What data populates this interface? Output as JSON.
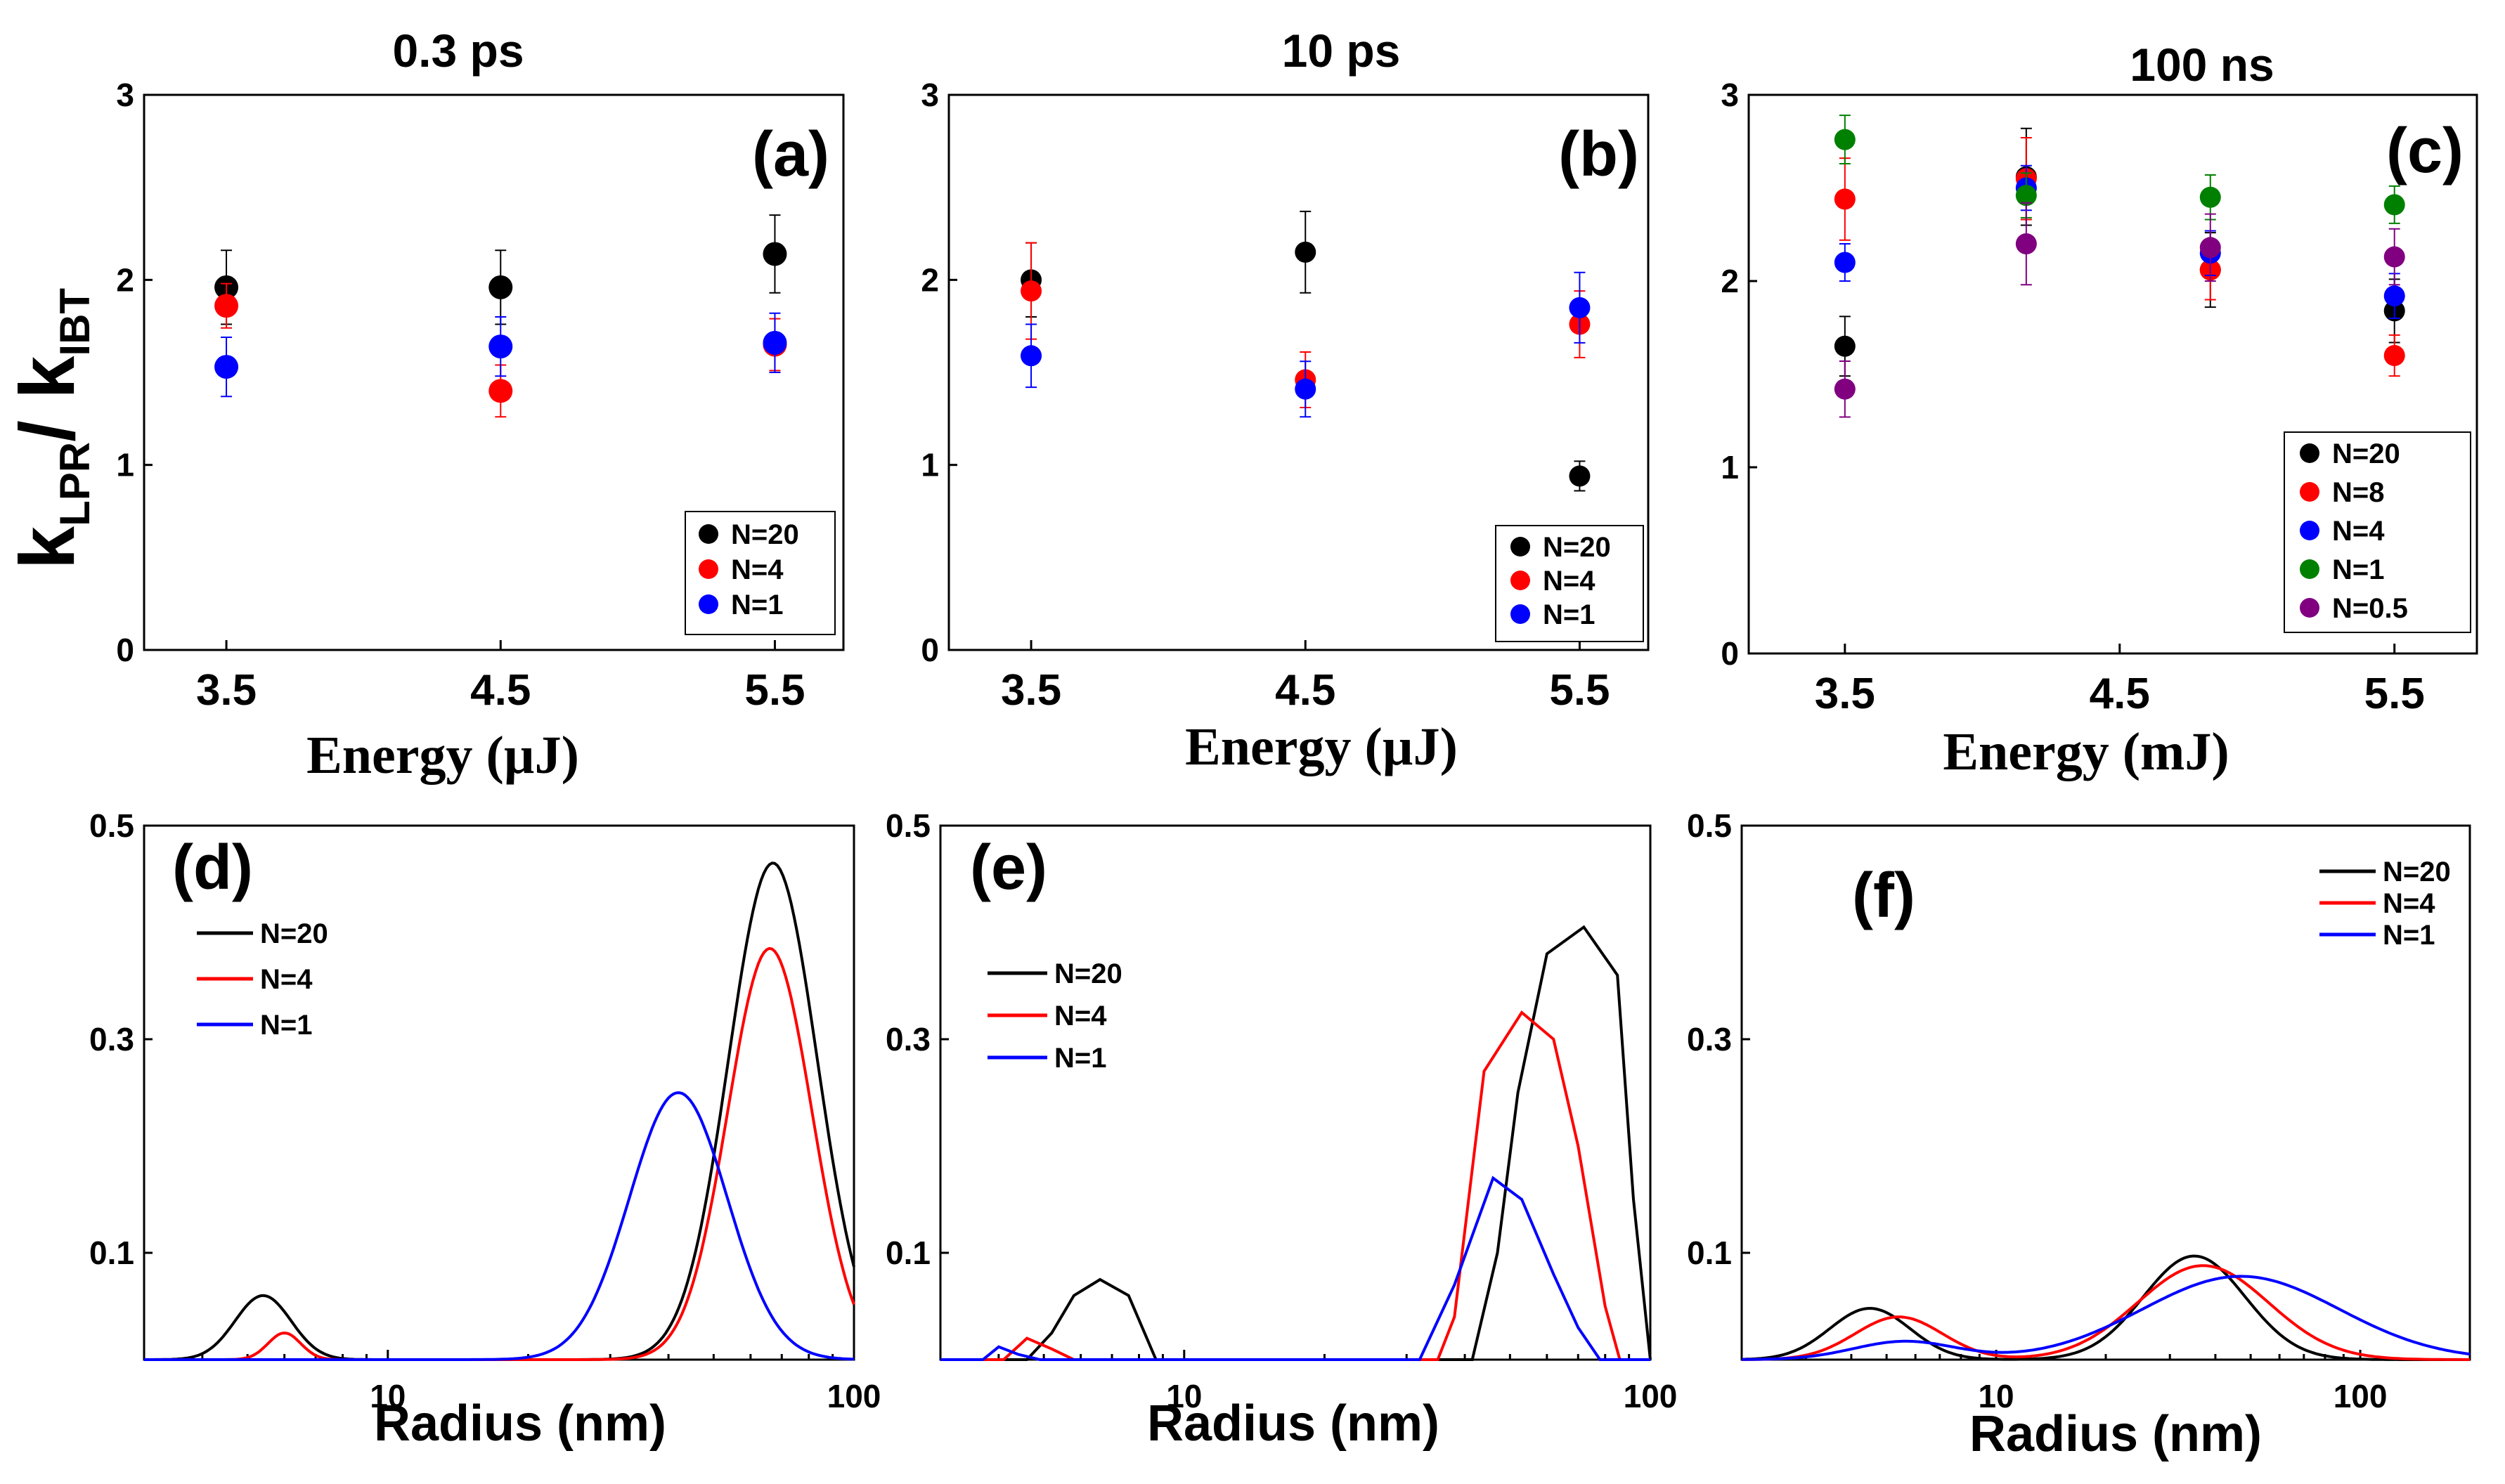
{
  "figure": {
    "ylabel_main": "k",
    "ylabel_sub1": "LPR",
    "ylabel_sep": "/ k",
    "ylabel_sub2": "IBT"
  },
  "chart_data": [
    {
      "id": "a",
      "type": "scatter",
      "title": "0.3 ps",
      "panel_label": "(a)",
      "xlabel": "Energy (µJ)",
      "xlabel_font": "serif",
      "ylabel": "kLPR/ kIBT",
      "xlim": [
        3.2,
        5.75
      ],
      "ylim": [
        0,
        3
      ],
      "xticks": [
        3.5,
        4.5,
        5.5
      ],
      "xtick_labels": [
        "3.5",
        "4.5",
        "5.5"
      ],
      "yticks": [
        0,
        1,
        2,
        3
      ],
      "ytick_labels": [
        "0",
        "1",
        "2",
        "3"
      ],
      "legend_position": "bottom-right",
      "series": [
        {
          "name": "N=20",
          "color": "#000000",
          "x": [
            3.5,
            4.5,
            5.5
          ],
          "y": [
            1.96,
            1.96,
            2.14
          ],
          "err": [
            0.2,
            0.2,
            0.21
          ]
        },
        {
          "name": "N=4",
          "color": "#ff0000",
          "x": [
            3.5,
            4.5,
            5.5
          ],
          "y": [
            1.86,
            1.4,
            1.65
          ],
          "err": [
            0.12,
            0.14,
            0.14
          ]
        },
        {
          "name": "N=1",
          "color": "#0000ff",
          "x": [
            3.5,
            4.5,
            5.5
          ],
          "y": [
            1.53,
            1.64,
            1.66
          ],
          "err": [
            0.16,
            0.16,
            0.16
          ]
        }
      ]
    },
    {
      "id": "b",
      "type": "scatter",
      "title": "10 ps",
      "panel_label": "(b)",
      "xlabel": "Energy (µJ)",
      "xlabel_font": "serif",
      "xlim": [
        3.2,
        5.75
      ],
      "ylim": [
        0,
        3
      ],
      "xticks": [
        3.5,
        4.5,
        5.5
      ],
      "xtick_labels": [
        "3.5",
        "4.5",
        "5.5"
      ],
      "yticks": [
        0,
        1,
        2,
        3
      ],
      "ytick_labels": [
        "0",
        "1",
        "2",
        "3"
      ],
      "legend_position": "bottom-right",
      "series": [
        {
          "name": "N=20",
          "color": "#000000",
          "x": [
            3.5,
            4.5,
            5.5
          ],
          "y": [
            2.0,
            2.15,
            0.94
          ],
          "err": [
            0.2,
            0.22,
            0.08
          ]
        },
        {
          "name": "N=4",
          "color": "#ff0000",
          "x": [
            3.5,
            4.5,
            5.5
          ],
          "y": [
            1.94,
            1.46,
            1.76
          ],
          "err": [
            0.26,
            0.15,
            0.18
          ]
        },
        {
          "name": "N=1",
          "color": "#0000ff",
          "x": [
            3.5,
            4.5,
            5.5
          ],
          "y": [
            1.59,
            1.41,
            1.85
          ],
          "err": [
            0.17,
            0.15,
            0.19
          ]
        }
      ]
    },
    {
      "id": "c",
      "type": "scatter",
      "title": "100 ns",
      "panel_label": "(c)",
      "xlabel": "Energy (mJ)",
      "xlabel_font": "serif",
      "xlim": [
        3.15,
        5.8
      ],
      "ylim": [
        0,
        3
      ],
      "xticks": [
        3.5,
        4.5,
        5.5
      ],
      "xtick_labels": [
        "3.5",
        "4.5",
        "5.5"
      ],
      "yticks": [
        0,
        1,
        2,
        3
      ],
      "ytick_labels": [
        "0",
        "1",
        "2",
        "3"
      ],
      "legend_position": "bottom-right",
      "series": [
        {
          "name": "N=20",
          "color": "#000000",
          "x": [
            3.5,
            4.16,
            4.83,
            5.5
          ],
          "y": [
            1.65,
            2.56,
            2.06,
            1.84
          ],
          "err": [
            0.16,
            0.26,
            0.2,
            0.17
          ]
        },
        {
          "name": "N=8",
          "color": "#ff0000",
          "x": [
            3.5,
            4.16,
            4.83,
            5.5
          ],
          "y": [
            2.44,
            2.55,
            2.06,
            1.6
          ],
          "err": [
            0.22,
            0.22,
            0.16,
            0.11
          ]
        },
        {
          "name": "N=4",
          "color": "#0000ff",
          "x": [
            3.5,
            4.16,
            4.83,
            5.5
          ],
          "y": [
            2.1,
            2.5,
            2.15,
            1.92
          ],
          "err": [
            0.1,
            0.12,
            0.12,
            0.12
          ]
        },
        {
          "name": "N=1",
          "color": "#008000",
          "x": [
            3.5,
            4.16,
            4.83,
            5.5
          ],
          "y": [
            2.76,
            2.46,
            2.45,
            2.41
          ],
          "err": [
            0.13,
            0.12,
            0.12,
            0.1
          ]
        },
        {
          "name": "N=0.5",
          "color": "#800080",
          "x": [
            3.5,
            4.16,
            4.83,
            5.5
          ],
          "y": [
            1.42,
            2.2,
            2.18,
            2.13
          ],
          "err": [
            0.15,
            0.22,
            0.18,
            0.15
          ]
        }
      ]
    },
    {
      "id": "d",
      "type": "line",
      "panel_label": "(d)",
      "xlabel": "Radius (nm)",
      "xlabel_font": "sans",
      "xscale": "log",
      "xlim": [
        3,
        100
      ],
      "ylim": [
        0,
        0.5
      ],
      "xticks": [
        10,
        100
      ],
      "xtick_labels": [
        "10",
        "100"
      ],
      "yticks": [
        0.1,
        0.3,
        0.5
      ],
      "ytick_labels": [
        "0.1",
        "0.3",
        "0.5"
      ],
      "legend_position": "top-left",
      "series": [
        {
          "name": "N=20",
          "color": "#000000",
          "components": [
            {
              "amp": 0.06,
              "center": 5.4,
              "width": 0.06
            },
            {
              "amp": 0.465,
              "center": 67,
              "width": 0.095
            }
          ]
        },
        {
          "name": "N=4",
          "color": "#ff0000",
          "components": [
            {
              "amp": 0.025,
              "center": 6.0,
              "width": 0.035
            },
            {
              "amp": 0.385,
              "center": 66,
              "width": 0.09
            }
          ]
        },
        {
          "name": "N=1",
          "color": "#0000ff",
          "components": [
            {
              "amp": 0.25,
              "center": 42,
              "width": 0.105
            }
          ]
        }
      ]
    },
    {
      "id": "e",
      "type": "line",
      "panel_label": "(e)",
      "xlabel": "Radius (nm)",
      "xlabel_font": "sans",
      "xscale": "log",
      "xlim": [
        3,
        100
      ],
      "ylim": [
        0,
        0.5
      ],
      "xticks": [
        10,
        100
      ],
      "xtick_labels": [
        "10",
        "100"
      ],
      "yticks": [
        0.1,
        0.3,
        0.5
      ],
      "ytick_labels": [
        "0.1",
        "0.3",
        "0.5"
      ],
      "legend_position": "middle-left",
      "series": [
        {
          "name": "N=20",
          "color": "#000000",
          "points": [
            [
              3,
              0
            ],
            [
              4.6,
              0
            ],
            [
              5.2,
              0.025
            ],
            [
              5.8,
              0.06
            ],
            [
              6.6,
              0.075
            ],
            [
              7.6,
              0.06
            ],
            [
              8.7,
              0
            ],
            [
              41.5,
              0
            ],
            [
              47,
              0.1
            ],
            [
              52,
              0.25
            ],
            [
              60,
              0.38
            ],
            [
              72,
              0.405
            ],
            [
              85,
              0.36
            ],
            [
              92,
              0.15
            ],
            [
              100,
              0
            ]
          ]
        },
        {
          "name": "N=4",
          "color": "#ff0000",
          "points": [
            [
              3,
              0
            ],
            [
              4.1,
              0
            ],
            [
              4.6,
              0.02
            ],
            [
              5.2,
              0.01
            ],
            [
              5.8,
              0
            ],
            [
              35,
              0
            ],
            [
              38,
              0.04
            ],
            [
              44,
              0.27
            ],
            [
              53,
              0.325
            ],
            [
              62,
              0.3
            ],
            [
              70,
              0.2
            ],
            [
              80,
              0.05
            ],
            [
              86,
              0
            ],
            [
              100,
              0
            ]
          ]
        },
        {
          "name": "N=1",
          "color": "#0000ff",
          "points": [
            [
              3,
              0
            ],
            [
              3.7,
              0
            ],
            [
              4.0,
              0.012
            ],
            [
              4.4,
              0.005
            ],
            [
              4.9,
              0
            ],
            [
              32,
              0
            ],
            [
              38,
              0.07
            ],
            [
              46,
              0.17
            ],
            [
              53,
              0.15
            ],
            [
              62,
              0.08
            ],
            [
              70,
              0.03
            ],
            [
              78,
              0
            ],
            [
              100,
              0
            ]
          ]
        }
      ]
    },
    {
      "id": "f",
      "type": "line",
      "panel_label": "(f)",
      "xlabel": "Radius (nm)",
      "xlabel_font": "sans",
      "xscale": "log",
      "xlim": [
        2,
        200
      ],
      "ylim": [
        0,
        0.5
      ],
      "xticks": [
        10,
        100
      ],
      "xtick_labels": [
        "10",
        "100"
      ],
      "yticks": [
        0.1,
        0.3,
        0.5
      ],
      "ytick_labels": [
        "0.1",
        "0.3",
        "0.5"
      ],
      "legend_position": "top-right",
      "series": [
        {
          "name": "N=20",
          "color": "#000000",
          "components": [
            {
              "amp": 0.048,
              "center": 4.5,
              "width": 0.11
            },
            {
              "amp": 0.097,
              "center": 35,
              "width": 0.14
            }
          ]
        },
        {
          "name": "N=4",
          "color": "#ff0000",
          "components": [
            {
              "amp": 0.04,
              "center": 5.4,
              "width": 0.12
            },
            {
              "amp": 0.088,
              "center": 37,
              "width": 0.18
            }
          ]
        },
        {
          "name": "N=1",
          "color": "#0000ff",
          "components": [
            {
              "amp": 0.017,
              "center": 5.6,
              "width": 0.14
            },
            {
              "amp": 0.078,
              "center": 47,
              "width": 0.27
            }
          ]
        }
      ]
    }
  ]
}
